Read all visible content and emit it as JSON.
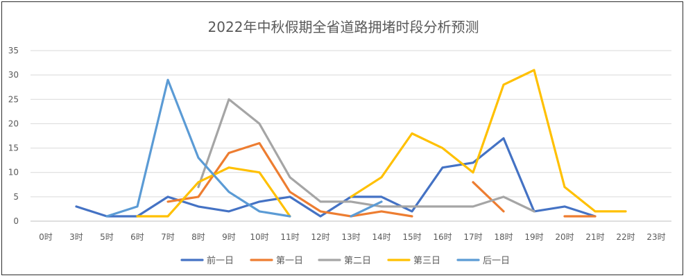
{
  "chart_data": {
    "type": "line",
    "title": "2022年中秋假期全省道路拥堵时段分析预测",
    "xlabel": "",
    "ylabel": "",
    "ylim": [
      0,
      35
    ],
    "yticks": [
      0,
      5,
      10,
      15,
      20,
      25,
      30,
      35
    ],
    "grid": true,
    "legend_position": "bottom",
    "categories": [
      "0时",
      "3时",
      "5时",
      "6时",
      "7时",
      "8时",
      "9时",
      "10时",
      "11时",
      "12时",
      "13时",
      "14时",
      "15时",
      "16时",
      "17时",
      "18时",
      "19时",
      "20时",
      "21时",
      "22时",
      "23时"
    ],
    "series": [
      {
        "name": "前一日",
        "color": "#4472C4",
        "values": [
          null,
          3,
          1,
          1,
          5,
          3,
          2,
          4,
          5,
          1,
          5,
          5,
          2,
          11,
          12,
          17,
          2,
          3,
          1,
          null,
          null
        ]
      },
      {
        "name": "第一日",
        "color": "#ED7D31",
        "values": [
          null,
          null,
          null,
          null,
          4,
          5,
          14,
          16,
          6,
          2,
          1,
          2,
          1,
          null,
          8,
          2,
          null,
          1,
          1,
          null,
          null
        ]
      },
      {
        "name": "第二日",
        "color": "#A5A5A5",
        "values": [
          null,
          null,
          null,
          null,
          null,
          7,
          25,
          20,
          9,
          4,
          4,
          3,
          3,
          3,
          3,
          5,
          2,
          null,
          null,
          null,
          null
        ]
      },
      {
        "name": "第三日",
        "color": "#FFC000",
        "values": [
          null,
          null,
          null,
          1,
          1,
          8,
          11,
          10,
          1,
          null,
          5,
          9,
          18,
          15,
          10,
          28,
          31,
          7,
          2,
          2,
          null
        ]
      },
      {
        "name": "后一日",
        "color": "#5B9BD5",
        "values": [
          null,
          null,
          1,
          3,
          29,
          13,
          6,
          2,
          1,
          null,
          1,
          4,
          null,
          null,
          null,
          null,
          null,
          null,
          null,
          null,
          null
        ]
      }
    ]
  }
}
